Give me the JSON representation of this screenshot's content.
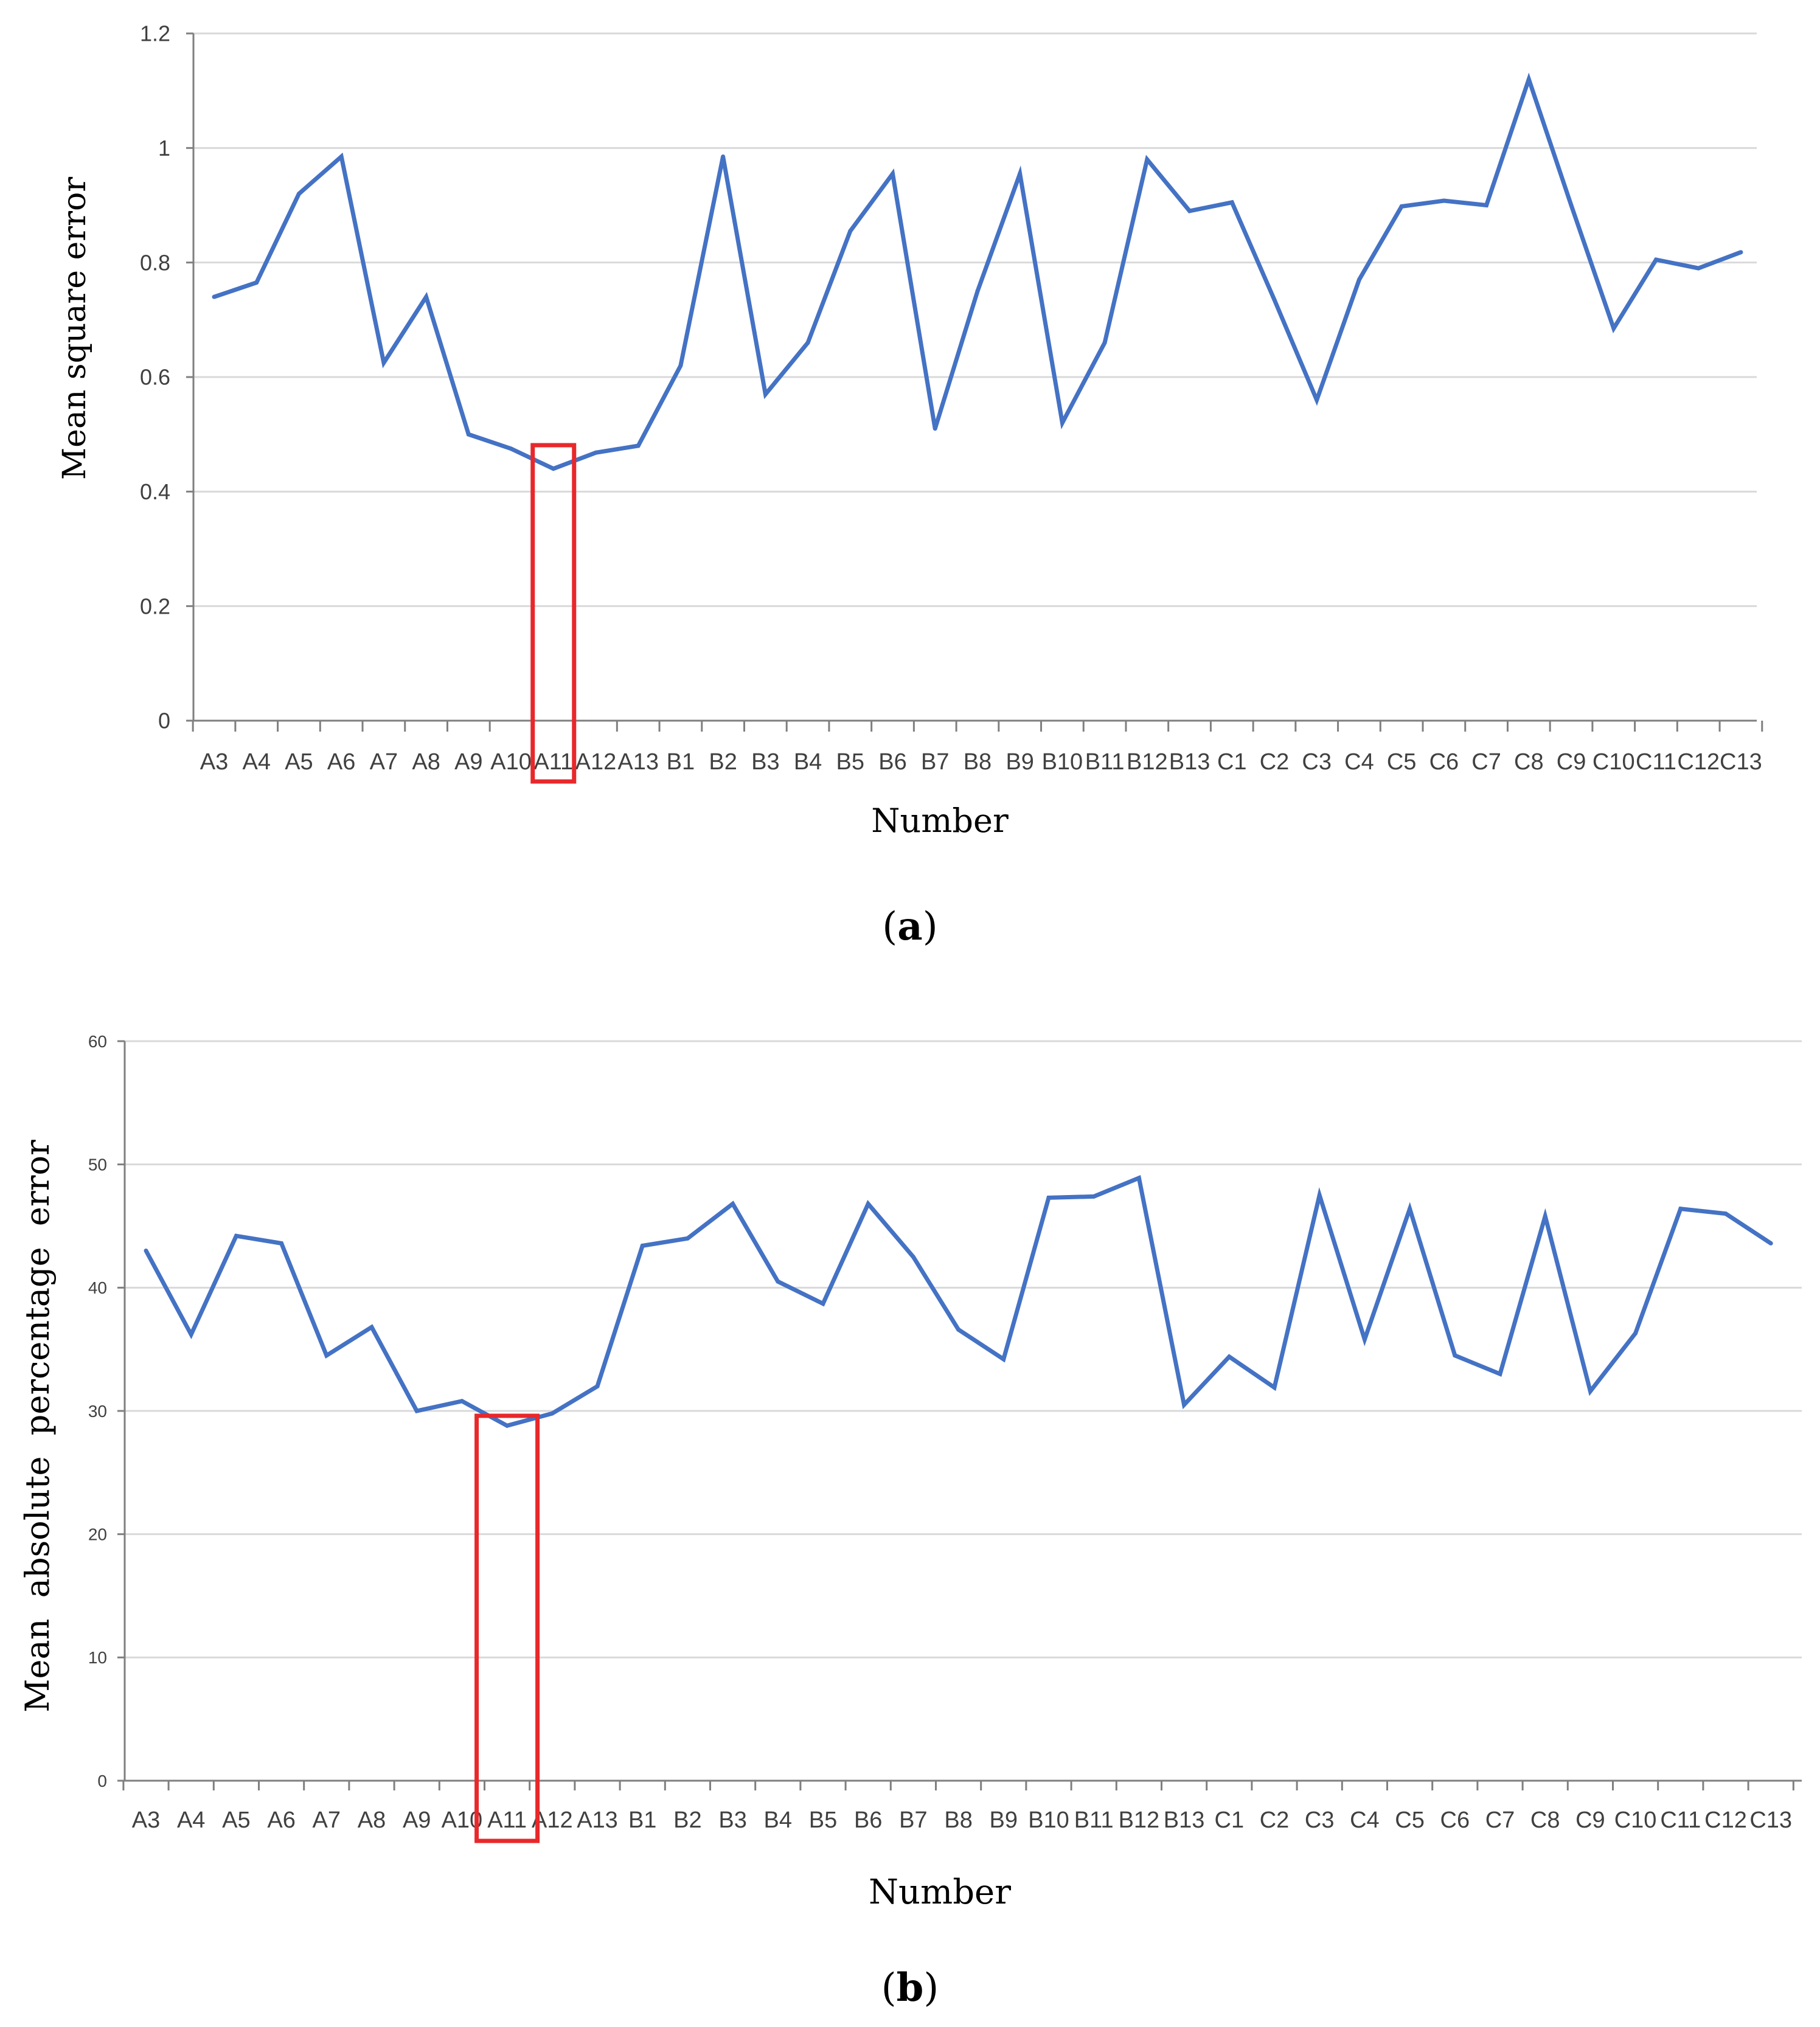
{
  "chart_data": [
    {
      "type": "line",
      "panel_label": "a",
      "xlabel": "Number",
      "ylabel": "Mean square error",
      "ylim": [
        0,
        1.2
      ],
      "yticks": [
        "0",
        "0.2",
        "0.4",
        "0.6",
        "0.8",
        "1",
        "1.2"
      ],
      "grid": true,
      "highlight_category": "A11",
      "color": "#4472c4",
      "highlight_color": "#e8282b",
      "categories": [
        "A3",
        "A4",
        "A5",
        "A6",
        "A7",
        "A8",
        "A9",
        "A10",
        "A11",
        "A12",
        "A13",
        "B1",
        "B2",
        "B3",
        "B4",
        "B5",
        "B6",
        "B7",
        "B8",
        "B9",
        "B10",
        "B11",
        "B12",
        "B13",
        "C1",
        "C2",
        "C3",
        "C4",
        "C5",
        "C6",
        "C7",
        "C8",
        "C9",
        "C10",
        "C11",
        "C12",
        "C13"
      ],
      "series": [
        {
          "name": "Mean square error",
          "values": [
            0.74,
            0.765,
            0.92,
            0.985,
            0.625,
            0.74,
            0.5,
            0.475,
            0.44,
            0.468,
            0.48,
            0.62,
            0.985,
            0.57,
            0.66,
            0.855,
            0.955,
            0.51,
            0.75,
            0.955,
            0.52,
            0.66,
            0.98,
            0.89,
            0.905,
            0.735,
            0.56,
            0.77,
            0.898,
            0.908,
            0.9,
            1.12,
            0.9,
            0.685,
            0.805,
            0.79,
            0.818
          ]
        }
      ]
    },
    {
      "type": "line",
      "panel_label": "b",
      "xlabel": "Number",
      "ylabel": "Mean  absolute  percentage  error",
      "ylim": [
        0,
        60
      ],
      "yticks": [
        "0",
        "10",
        "20",
        "30",
        "40",
        "50",
        "60"
      ],
      "grid": true,
      "highlight_category": "A11",
      "color": "#4472c4",
      "highlight_color": "#e8282b",
      "categories": [
        "A3",
        "A4",
        "A5",
        "A6",
        "A7",
        "A8",
        "A9",
        "A10",
        "A11",
        "A12",
        "A13",
        "B1",
        "B2",
        "B3",
        "B4",
        "B5",
        "B6",
        "B7",
        "B8",
        "B9",
        "B10",
        "B11",
        "B12",
        "B13",
        "C1",
        "C2",
        "C3",
        "C4",
        "C5",
        "C6",
        "C7",
        "C8",
        "C9",
        "C10",
        "C11",
        "C12",
        "C13"
      ],
      "series": [
        {
          "name": "Mean absolute percentage error",
          "values": [
            43,
            36.2,
            44.2,
            43.6,
            34.5,
            36.8,
            30,
            30.8,
            28.8,
            29.8,
            32,
            43.4,
            44,
            46.8,
            40.5,
            38.7,
            46.8,
            42.5,
            36.6,
            34.2,
            47.3,
            47.4,
            48.9,
            30.5,
            34.4,
            31.9,
            47.5,
            35.8,
            46.4,
            34.5,
            33,
            45.8,
            31.6,
            36.3,
            46.4,
            46,
            43.6
          ]
        }
      ]
    }
  ]
}
